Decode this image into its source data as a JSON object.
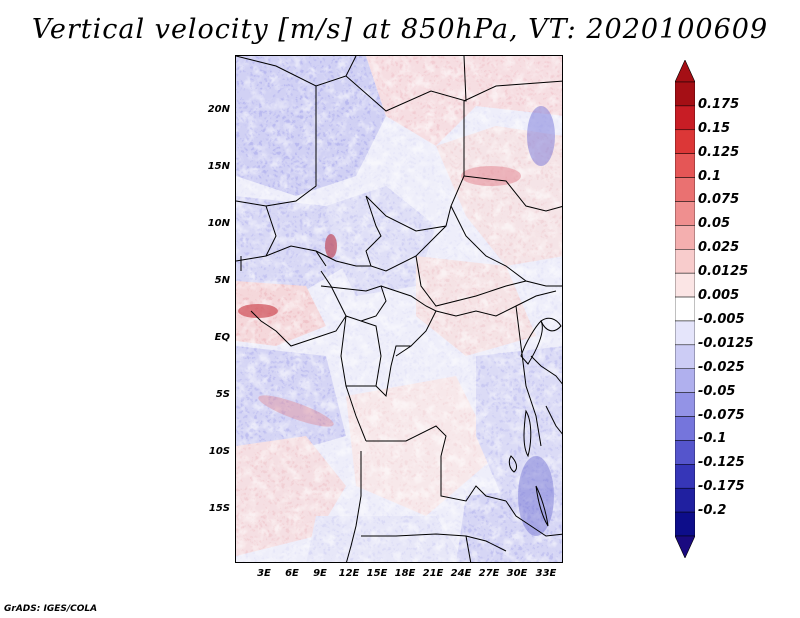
{
  "title": "Vertical velocity [m/s] at 850hPa, VT: 2020100609",
  "footer": "GrADS: IGES/COLA",
  "map": {
    "variable": "Vertical velocity",
    "units": "m/s",
    "level": "850hPa",
    "valid_time": "2020100609",
    "lat_labels": [
      "20N",
      "15N",
      "10N",
      "5N",
      "EQ",
      "5S",
      "10S",
      "15S"
    ],
    "lon_labels": [
      "3E",
      "6E",
      "9E",
      "12E",
      "15E",
      "18E",
      "21E",
      "24E",
      "27E",
      "30E",
      "33E"
    ]
  },
  "colorbar": {
    "labels": [
      "0.175",
      "0.15",
      "0.125",
      "0.1",
      "0.075",
      "0.05",
      "0.025",
      "0.0125",
      "0.005",
      "-0.005",
      "-0.0125",
      "-0.025",
      "-0.05",
      "-0.075",
      "-0.1",
      "-0.125",
      "-0.175",
      "-0.2"
    ],
    "colors": [
      "#a50f15",
      "#c81d25",
      "#dc3737",
      "#e55656",
      "#ea7171",
      "#ef8f8f",
      "#f4afaf",
      "#f8cccc",
      "#fbe5e5",
      "#ffffff",
      "#e5e5fb",
      "#ccccf5",
      "#b0b0ee",
      "#9393e6",
      "#7575dc",
      "#5555cc",
      "#3636b8",
      "#2020a0",
      "#0d0d8a"
    ],
    "top_arrow_color": "#a50f15",
    "bottom_arrow_color": "#1a0a80"
  }
}
